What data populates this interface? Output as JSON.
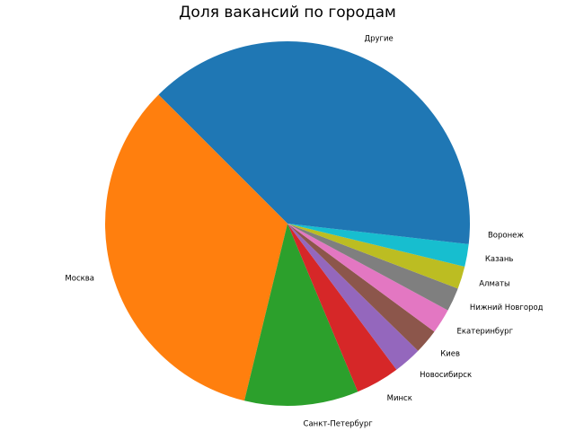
{
  "chart_data": {
    "type": "pie",
    "title": "Доля вакансий по городам",
    "categories": [
      "Другие",
      "Москва",
      "Санкт-Петербург",
      "Минск",
      "Новосибирск",
      "Киев",
      "Екатеринбург",
      "Нижний Новгород",
      "Алматы",
      "Казань",
      "Воронеж"
    ],
    "values": [
      37.5,
      33.7,
      10.1,
      3.9,
      2.5,
      2.2,
      2.2,
      2.1,
      2.0,
      2.0,
      1.8
    ],
    "colors": [
      "#1f77b4",
      "#ff7f0e",
      "#2ca02c",
      "#d62728",
      "#9467bd",
      "#8c564b",
      "#e377c2",
      "#7f7f7f",
      "#bcbd22",
      "#17becf",
      "#1f77b4"
    ],
    "start_angle_deg": 0,
    "direction": "counterclockwise"
  }
}
